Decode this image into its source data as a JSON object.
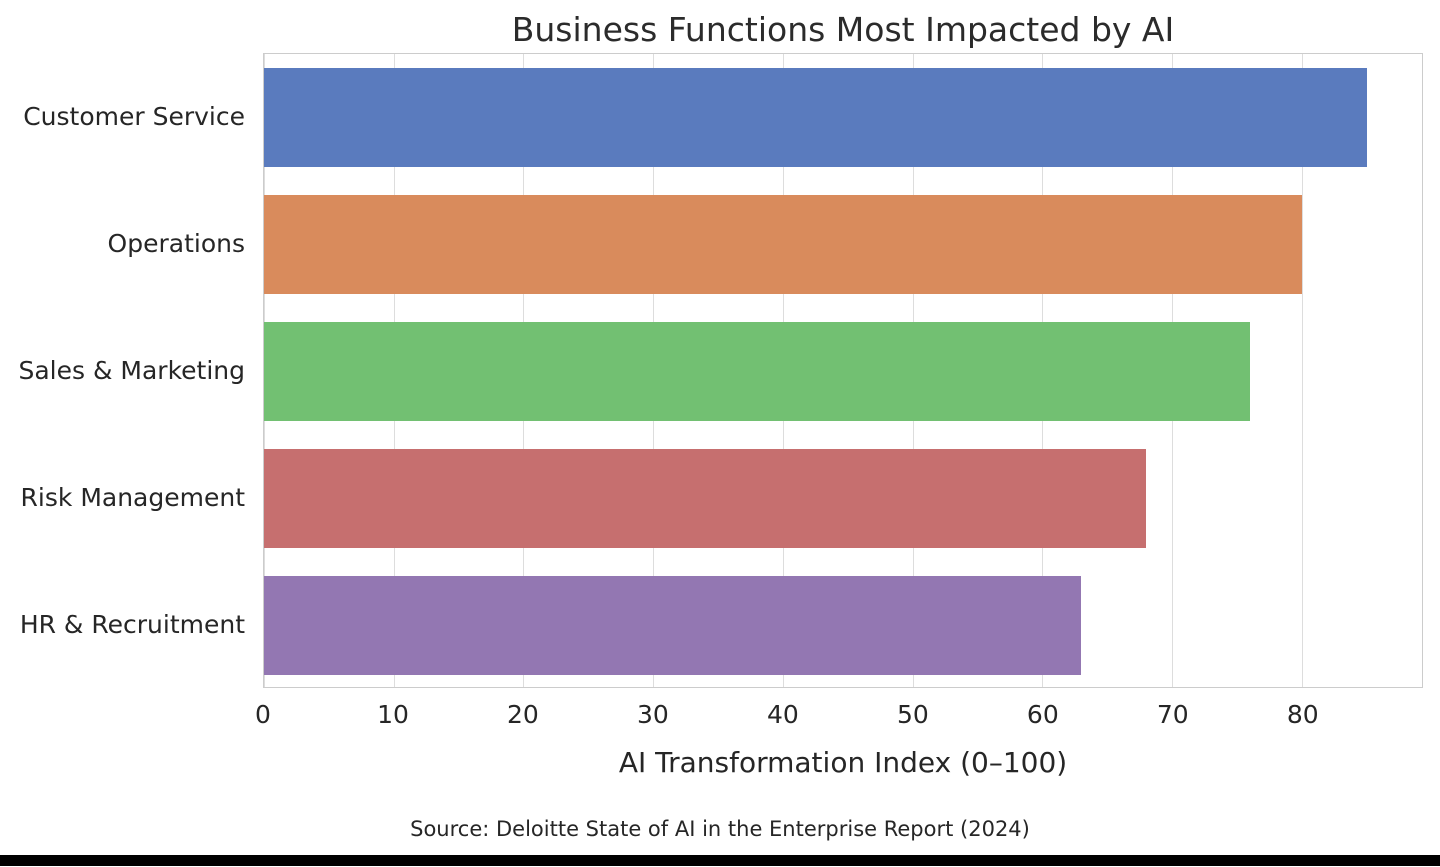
{
  "chart_data": {
    "type": "bar",
    "orientation": "horizontal",
    "title": "Business Functions Most Impacted by AI",
    "xlabel": "AI Transformation Index (0–100)",
    "source": "Source: Deloitte State of AI in the Enterprise Report (2024)",
    "categories": [
      "Customer Service",
      "Operations",
      "Sales & Marketing",
      "Risk Management",
      "HR & Recruitment"
    ],
    "values": [
      85,
      80,
      76,
      68,
      63
    ],
    "bar_colors": [
      "#5a7bbe",
      "#d98b5c",
      "#72c072",
      "#c66f6f",
      "#9377b2"
    ],
    "xlim": [
      0,
      89.25
    ],
    "xticks": [
      0,
      10,
      20,
      30,
      40,
      50,
      60,
      70,
      80
    ],
    "grid": true,
    "legend_position": "none",
    "text_color": "#262626",
    "grid_color": "#dddddd",
    "spine_color": "#cccccc",
    "background_color": "#ffffff"
  }
}
